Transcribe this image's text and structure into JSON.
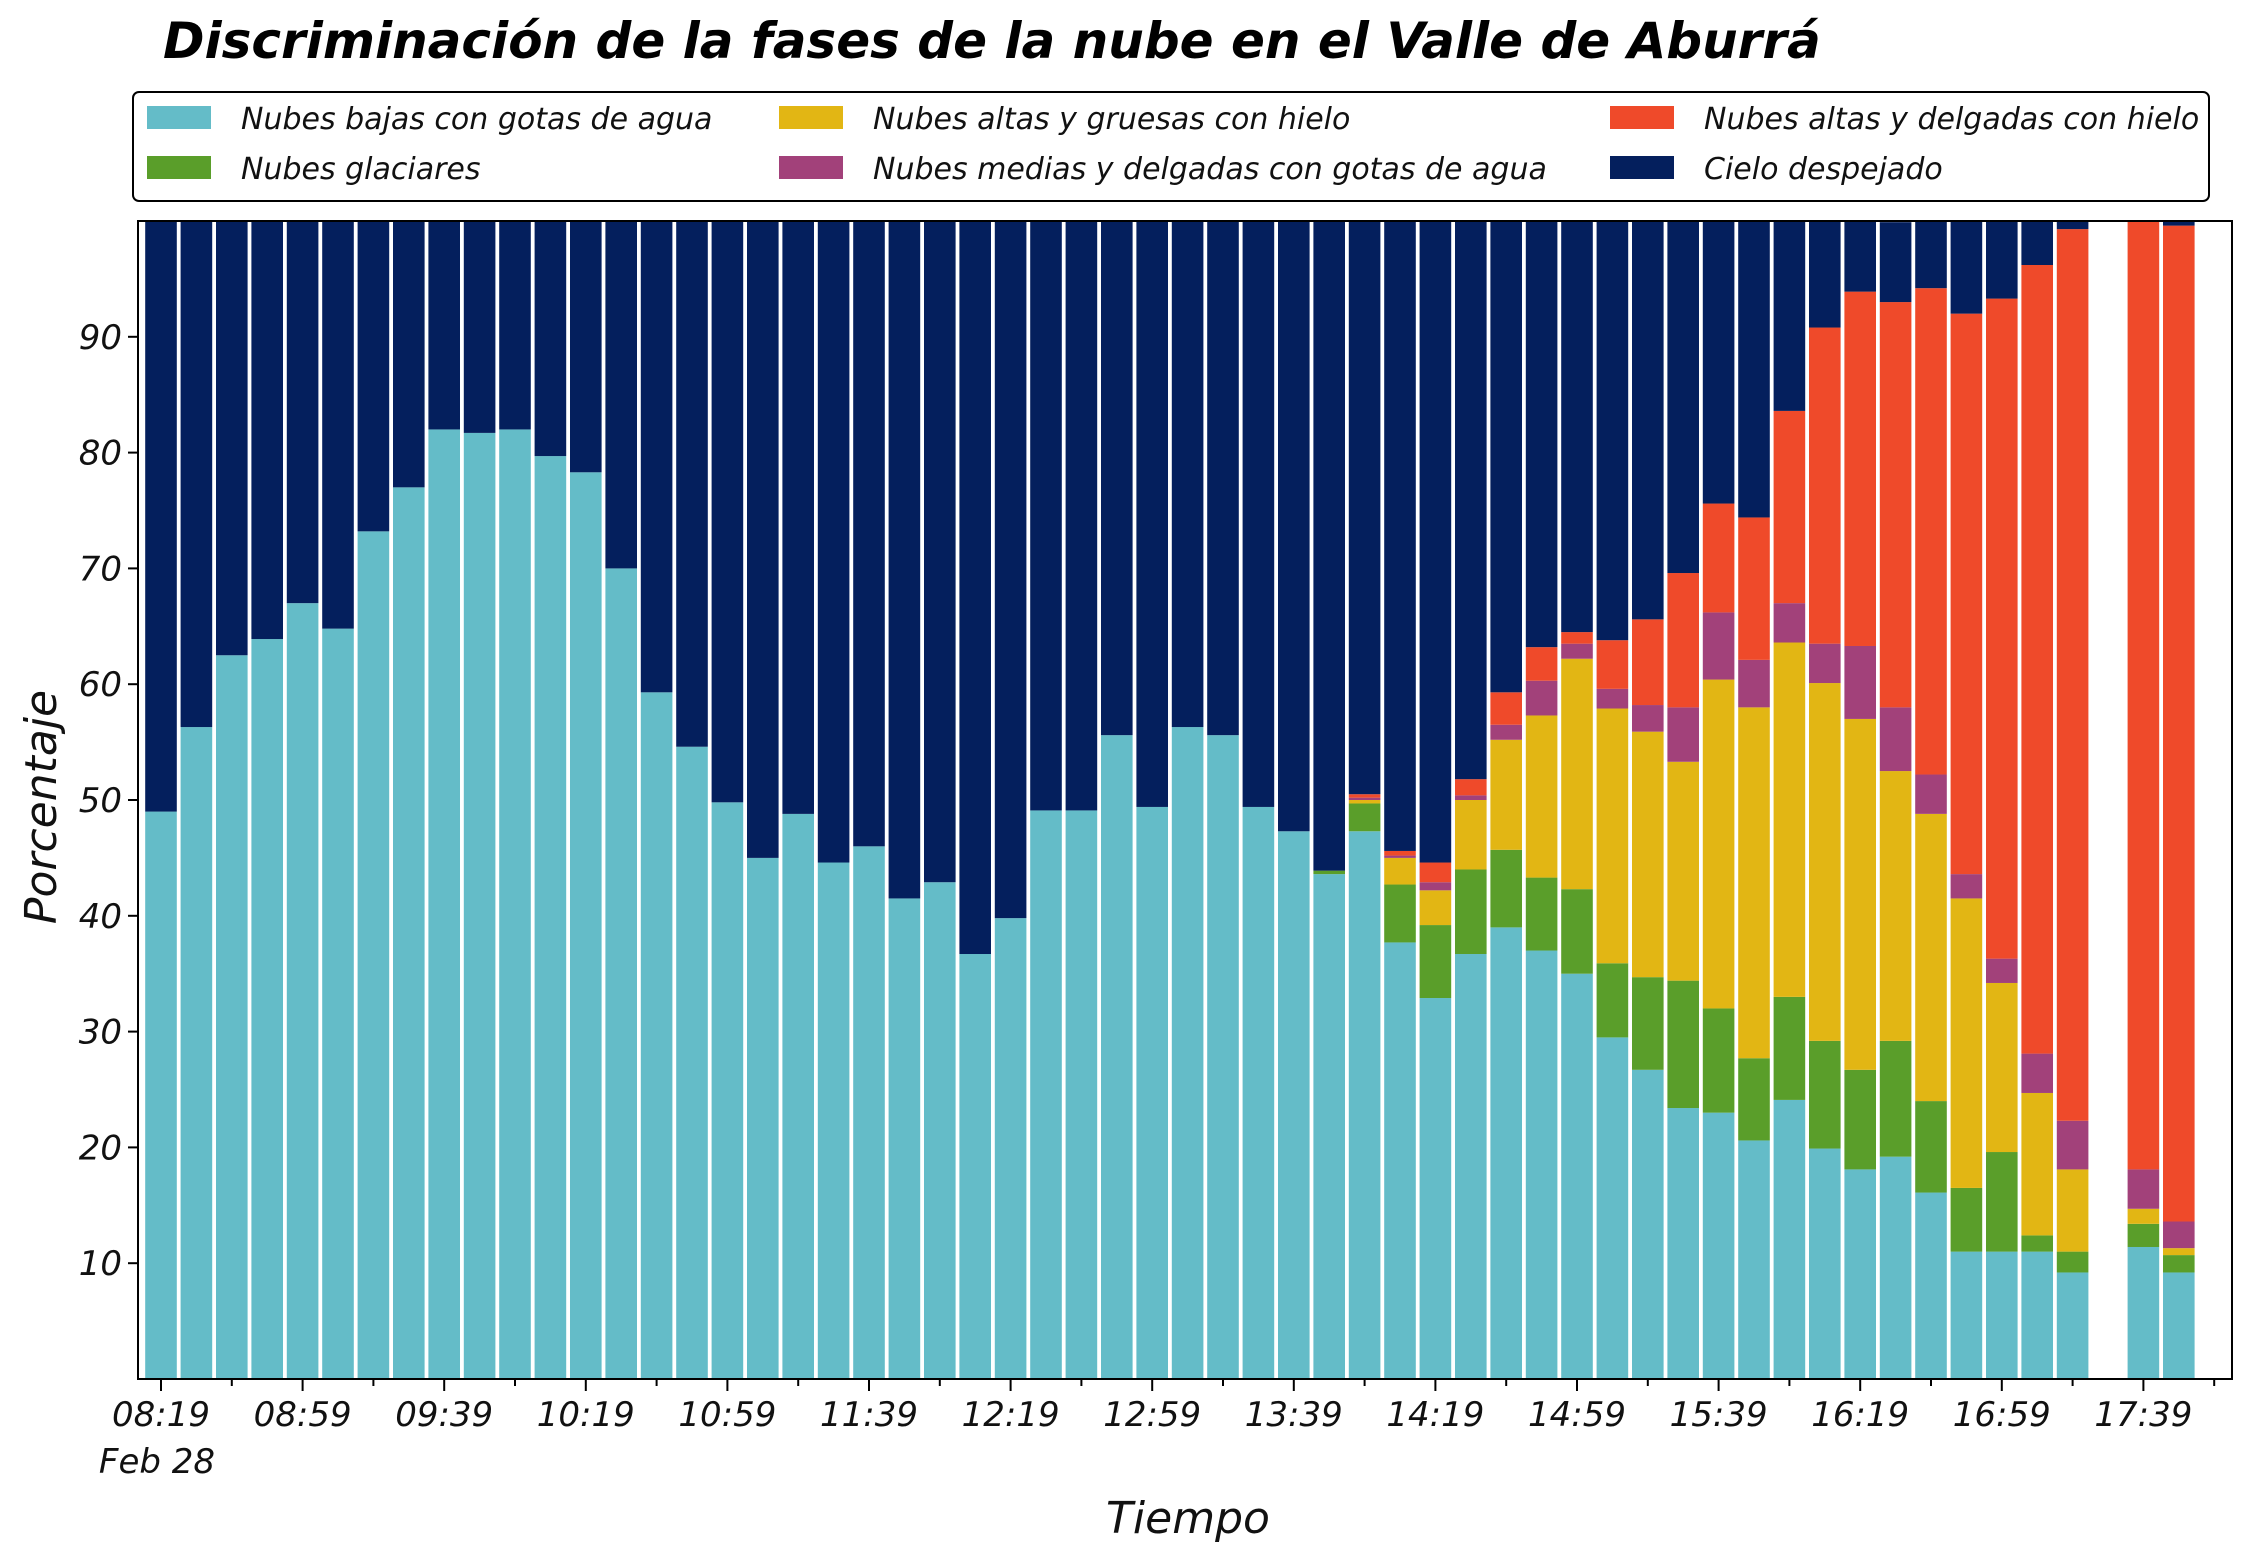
{
  "chart_data": {
    "type": "bar",
    "stacked": true,
    "title": "Discriminación de la fases de la nube en el Valle de Aburrá",
    "xlabel": "Tiempo",
    "ylabel": "Porcentaje",
    "ylim": [
      0,
      100
    ],
    "yticks": [
      10,
      20,
      30,
      40,
      50,
      60,
      70,
      80,
      90
    ],
    "xtick_labels": [
      "08:19",
      "08:59",
      "09:39",
      "10:19",
      "10:59",
      "11:39",
      "12:19",
      "12:59",
      "13:39",
      "14:19",
      "14:59",
      "15:39",
      "16:19",
      "16:59",
      "17:39"
    ],
    "xtick_sublabel": "Feb 28",
    "legend_position": "top",
    "grid": false,
    "categories": [
      "08:19",
      "08:29",
      "08:39",
      "08:49",
      "08:59",
      "09:09",
      "09:19",
      "09:29",
      "09:39",
      "09:49",
      "09:59",
      "10:09",
      "10:19",
      "10:29",
      "10:39",
      "10:49",
      "10:59",
      "11:09",
      "11:19",
      "11:29",
      "11:39",
      "11:49",
      "11:59",
      "12:09",
      "12:19",
      "12:29",
      "12:39",
      "12:49",
      "12:59",
      "13:09",
      "13:19",
      "13:29",
      "13:39",
      "13:49",
      "13:59",
      "14:09",
      "14:19",
      "14:29",
      "14:39",
      "14:49",
      "14:59",
      "15:09",
      "15:19",
      "15:29",
      "15:39",
      "15:49",
      "15:59",
      "16:09",
      "16:19",
      "16:29",
      "16:39",
      "16:49",
      "16:59",
      "17:09",
      "17:19",
      "17:29",
      "17:39",
      "17:49"
    ],
    "series": [
      {
        "name": "Nubes bajas con gotas de agua",
        "color": "#64bcc8",
        "values": [
          49,
          56.3,
          62.5,
          63.9,
          67,
          64.8,
          73.2,
          77,
          82,
          81.7,
          82,
          79.7,
          78.3,
          70,
          59.3,
          54.6,
          49.8,
          45,
          48.8,
          44.6,
          46,
          41.5,
          42.9,
          36.7,
          39.8,
          49.1,
          49.1,
          55.6,
          49.4,
          56.3,
          55.6,
          49.4,
          47.3,
          43.6,
          47.3,
          37.7,
          32.9,
          36.7,
          39,
          37,
          35,
          29.5,
          26.7,
          23.4,
          23,
          20.6,
          24.1,
          19.9,
          18.1,
          19.2,
          16.1,
          11,
          11,
          11,
          9.2,
          0,
          11.4,
          9.2
        ]
      },
      {
        "name": "Nubes glaciares",
        "color": "#5a9e2a",
        "values": [
          0,
          0,
          0,
          0,
          0,
          0,
          0,
          0,
          0,
          0,
          0,
          0,
          0,
          0,
          0,
          0,
          0,
          0,
          0,
          0,
          0,
          0,
          0,
          0,
          0,
          0,
          0,
          0,
          0,
          0,
          0,
          0,
          0,
          0.3,
          2.4,
          5,
          6.3,
          7.3,
          6.7,
          6.3,
          7.3,
          6.4,
          8,
          11,
          9,
          7.1,
          8.9,
          9.3,
          8.6,
          10,
          7.9,
          5.5,
          8.6,
          1.4,
          1.8,
          0,
          2,
          1.5
        ]
      },
      {
        "name": "Nubes altas y gruesas con hielo",
        "color": "#e2b614",
        "values": [
          0,
          0,
          0,
          0,
          0,
          0,
          0,
          0,
          0,
          0,
          0,
          0,
          0,
          0,
          0,
          0,
          0,
          0,
          0,
          0,
          0,
          0,
          0,
          0,
          0,
          0,
          0,
          0,
          0,
          0,
          0,
          0,
          0,
          0,
          0.3,
          2.3,
          3,
          6,
          9.5,
          14,
          19.9,
          22,
          21.2,
          18.9,
          28.4,
          30.3,
          30.6,
          30.9,
          30.3,
          23.3,
          24.8,
          25,
          14.6,
          12.3,
          7.1,
          0,
          1.3,
          0.6
        ]
      },
      {
        "name": "Nubes medias y delgadas con gotas de agua",
        "color": "#a2417a",
        "values": [
          0,
          0,
          0,
          0,
          0,
          0,
          0,
          0,
          0,
          0,
          0,
          0,
          0,
          0,
          0,
          0,
          0,
          0,
          0,
          0,
          0,
          0,
          0,
          0,
          0,
          0,
          0,
          0,
          0,
          0,
          0,
          0,
          0,
          0,
          0.2,
          0.2,
          0.7,
          0.4,
          1.3,
          3,
          1.3,
          1.7,
          2.3,
          4.7,
          5.8,
          4.1,
          3.4,
          3.4,
          6.3,
          5.5,
          3.4,
          2.1,
          2.1,
          3.4,
          4.2,
          0,
          3.4,
          2.3
        ]
      },
      {
        "name": "Nubes altas y delgadas con hielo",
        "color": "#ef4a2a",
        "values": [
          0,
          0,
          0,
          0,
          0,
          0,
          0,
          0,
          0,
          0,
          0,
          0,
          0,
          0,
          0,
          0,
          0,
          0,
          0,
          0,
          0,
          0,
          0,
          0,
          0,
          0,
          0,
          0,
          0,
          0,
          0,
          0,
          0,
          0,
          0.3,
          0.4,
          1.7,
          1.4,
          2.8,
          2.9,
          1,
          4.2,
          7.4,
          11.6,
          9.4,
          12.3,
          16.6,
          27.3,
          30.6,
          35,
          42,
          48.4,
          57,
          68.1,
          77,
          0,
          81.9,
          86
        ]
      },
      {
        "name": "Cielo despejado",
        "color": "#041f5d",
        "values": [
          51,
          43.7,
          37.5,
          36.1,
          33,
          35.2,
          26.8,
          23,
          18,
          18.3,
          18,
          20.3,
          21.7,
          30,
          40.7,
          45.4,
          50.2,
          55,
          51.2,
          55.4,
          54,
          58.5,
          57.1,
          63.3,
          60.2,
          50.9,
          50.9,
          44.4,
          50.6,
          43.7,
          44.4,
          50.6,
          52.7,
          56.1,
          49.5,
          54.4,
          55.4,
          48.2,
          40.7,
          36.8,
          35.5,
          36.2,
          34.4,
          30.4,
          24.4,
          25.6,
          16.4,
          9.2,
          6.1,
          6.9,
          5.8,
          8,
          6.7,
          3.8,
          0.7,
          0,
          0,
          0.4
        ]
      }
    ]
  }
}
